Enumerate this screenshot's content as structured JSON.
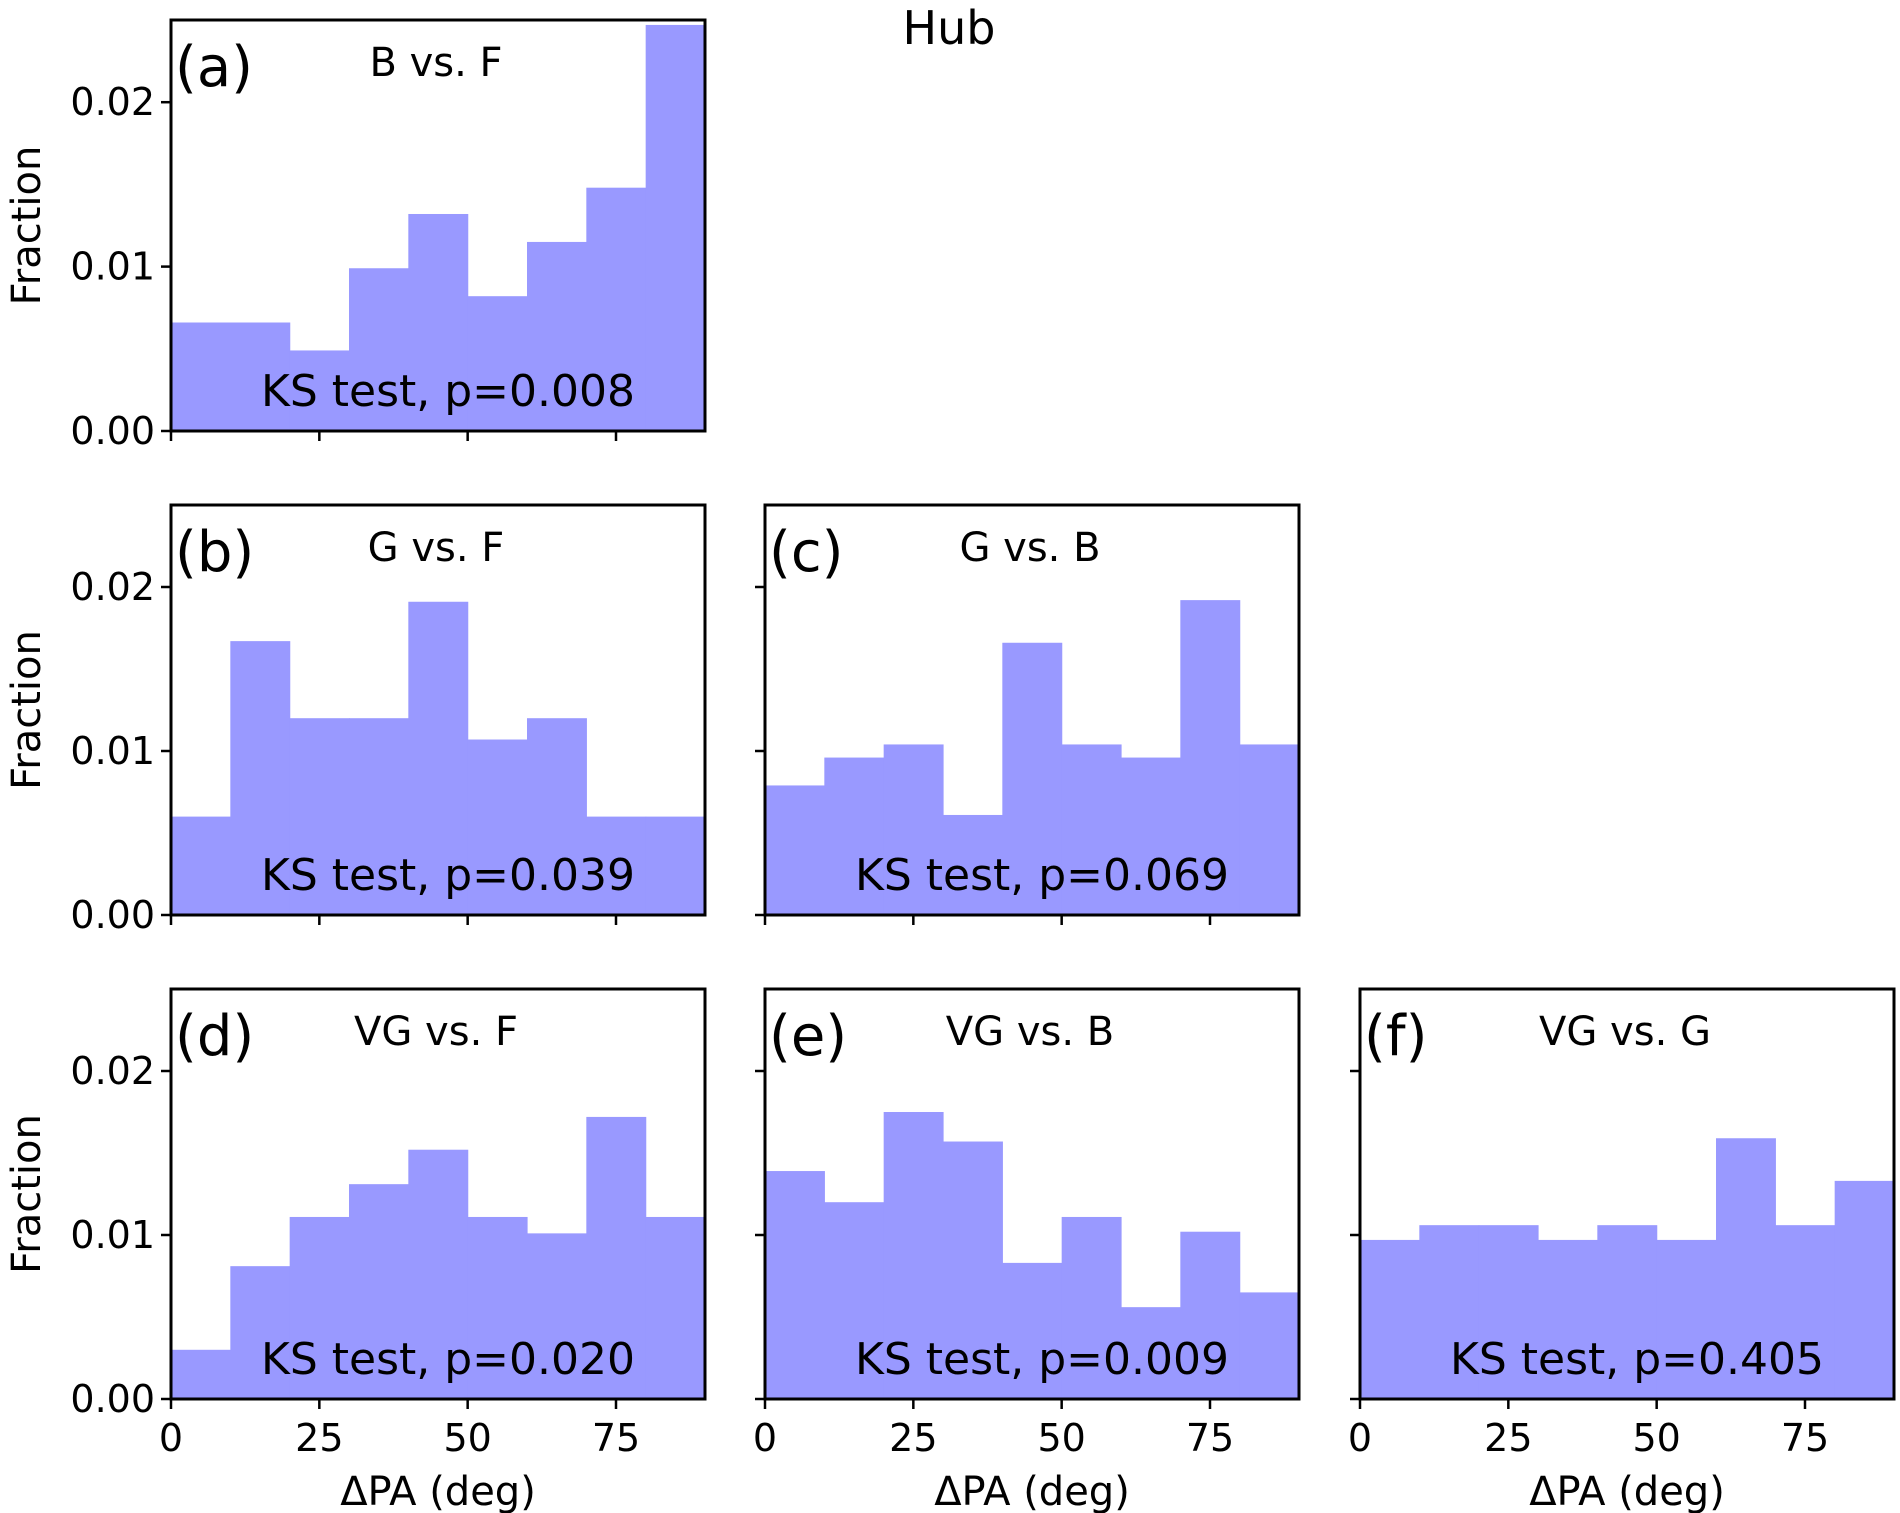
{
  "suptitle": "Hub",
  "chart_data": [
    {
      "type": "bar",
      "label": "(a)",
      "title": "B vs. F",
      "annotation": "KS test, p=0.008",
      "xlabel": "",
      "ylabel": "Fraction",
      "xlim": [
        0,
        90
      ],
      "ylim": [
        0,
        0.025
      ],
      "bin_edges": [
        0,
        10,
        20,
        30,
        40,
        50,
        60,
        70,
        80,
        90
      ],
      "values": [
        0.0066,
        0.0066,
        0.0049,
        0.0099,
        0.0132,
        0.0082,
        0.0115,
        0.0148,
        0.0247
      ],
      "yticks": [
        0.0,
        0.01,
        0.02
      ],
      "ytick_labels": [
        "0.00",
        "0.01",
        "0.02"
      ],
      "xticks": [
        0,
        25,
        50,
        75
      ],
      "xtick_labels": []
    },
    {
      "type": "bar",
      "label": "(b)",
      "title": "G vs. F",
      "annotation": "KS test, p=0.039",
      "xlabel": "",
      "ylabel": "Fraction",
      "xlim": [
        0,
        90
      ],
      "ylim": [
        0,
        0.025
      ],
      "bin_edges": [
        0,
        10,
        20,
        30,
        40,
        50,
        60,
        70,
        80,
        90
      ],
      "values": [
        0.006,
        0.0167,
        0.012,
        0.012,
        0.0191,
        0.0107,
        0.012,
        0.006,
        0.006
      ],
      "yticks": [
        0.0,
        0.01,
        0.02
      ],
      "ytick_labels": [
        "0.00",
        "0.01",
        "0.02"
      ],
      "xticks": [
        0,
        25,
        50,
        75
      ],
      "xtick_labels": []
    },
    {
      "type": "bar",
      "label": "(c)",
      "title": "G vs. B",
      "annotation": "KS test, p=0.069",
      "xlabel": "",
      "ylabel": "",
      "xlim": [
        0,
        90
      ],
      "ylim": [
        0,
        0.025
      ],
      "bin_edges": [
        0,
        10,
        20,
        30,
        40,
        50,
        60,
        70,
        80,
        90
      ],
      "values": [
        0.0079,
        0.0096,
        0.0104,
        0.0061,
        0.0166,
        0.0104,
        0.0096,
        0.0192,
        0.0104
      ],
      "yticks": [
        0.0,
        0.01,
        0.02
      ],
      "ytick_labels": [],
      "xticks": [
        0,
        25,
        50,
        75
      ],
      "xtick_labels": []
    },
    {
      "type": "bar",
      "label": "(d)",
      "title": "VG vs. F",
      "annotation": "KS test, p=0.020",
      "xlabel": "ΔPA (deg)",
      "ylabel": "Fraction",
      "xlim": [
        0,
        90
      ],
      "ylim": [
        0,
        0.025
      ],
      "bin_edges": [
        0,
        10,
        20,
        30,
        40,
        50,
        60,
        70,
        80,
        90
      ],
      "values": [
        0.003,
        0.0081,
        0.0111,
        0.0131,
        0.0152,
        0.0111,
        0.0101,
        0.0172,
        0.0111
      ],
      "yticks": [
        0.0,
        0.01,
        0.02
      ],
      "ytick_labels": [
        "0.00",
        "0.01",
        "0.02"
      ],
      "xticks": [
        0,
        25,
        50,
        75
      ],
      "xtick_labels": [
        "0",
        "25",
        "50",
        "75"
      ]
    },
    {
      "type": "bar",
      "label": "(e)",
      "title": "VG vs. B",
      "annotation": "KS test, p=0.009",
      "xlabel": "ΔPA (deg)",
      "ylabel": "",
      "xlim": [
        0,
        90
      ],
      "ylim": [
        0,
        0.025
      ],
      "bin_edges": [
        0,
        10,
        20,
        30,
        40,
        50,
        60,
        70,
        80,
        90
      ],
      "values": [
        0.0139,
        0.012,
        0.0175,
        0.0157,
        0.0083,
        0.0111,
        0.0056,
        0.0102,
        0.0065
      ],
      "yticks": [
        0.0,
        0.01,
        0.02
      ],
      "ytick_labels": [],
      "xticks": [
        0,
        25,
        50,
        75
      ],
      "xtick_labels": [
        "0",
        "25",
        "50",
        "75"
      ]
    },
    {
      "type": "bar",
      "label": "(f)",
      "title": "VG vs. G",
      "annotation": "KS test, p=0.405",
      "xlabel": "ΔPA (deg)",
      "ylabel": "",
      "xlim": [
        0,
        90
      ],
      "ylim": [
        0,
        0.025
      ],
      "bin_edges": [
        0,
        10,
        20,
        30,
        40,
        50,
        60,
        70,
        80,
        90
      ],
      "values": [
        0.0097,
        0.0106,
        0.0106,
        0.0097,
        0.0106,
        0.0097,
        0.0159,
        0.0106,
        0.0133
      ],
      "yticks": [
        0.0,
        0.01,
        0.02
      ],
      "ytick_labels": [],
      "xticks": [
        0,
        25,
        50,
        75
      ],
      "xtick_labels": [
        "0",
        "25",
        "50",
        "75"
      ]
    }
  ]
}
